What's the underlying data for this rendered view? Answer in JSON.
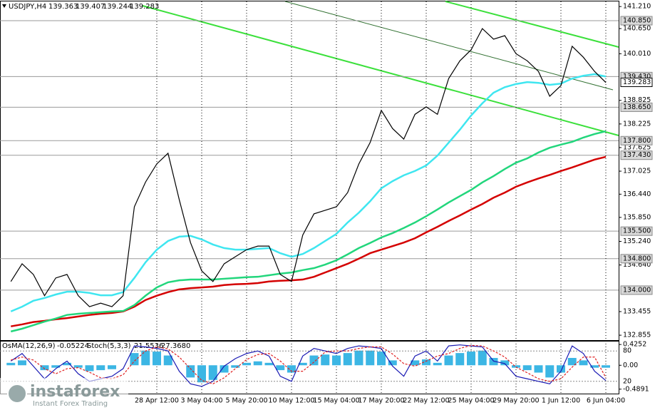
{
  "chart_data": {
    "type": "line",
    "title": "USDJPY,H4",
    "ohlc": [
      139.363,
      139.407,
      139.244,
      139.283
    ],
    "categories": [
      null,
      null,
      null,
      null,
      null,
      null,
      null,
      null,
      null,
      null,
      null,
      null,
      null,
      "28 Apr 12:00",
      null,
      null,
      null,
      "3 May 04:00",
      null,
      null,
      null,
      "5 May 20:00",
      null,
      null,
      null,
      "10 May 12:00",
      null,
      null,
      null,
      "15 May 04:00",
      null,
      null,
      null,
      "17 May 20:00",
      null,
      null,
      null,
      "22 May 12:00",
      null,
      null,
      null,
      "25 May 04:00",
      null,
      null,
      null,
      "29 May 20:00",
      null,
      null,
      null,
      "1 Jun 12:00",
      null,
      null,
      null,
      "6 Jun 04:00"
    ],
    "series": [
      {
        "color": "#000000",
        "values": [
          134.22,
          134.67,
          134.4,
          133.86,
          134.31,
          134.4,
          133.86,
          133.58,
          133.67,
          133.58,
          133.86,
          136.12,
          136.75,
          137.21,
          137.48,
          136.3,
          135.21,
          134.49,
          134.22,
          134.67,
          134.85,
          135.03,
          135.12,
          135.12,
          134.4,
          134.22,
          135.4,
          135.94,
          136.03,
          136.12,
          136.48,
          137.21,
          137.75,
          138.57,
          138.11,
          137.84,
          138.47,
          138.66,
          138.47,
          139.38,
          139.83,
          140.11,
          140.65,
          140.38,
          140.47,
          140.01,
          139.83,
          139.56,
          138.93,
          139.2,
          140.2,
          139.92,
          139.56,
          139.28
        ]
      },
      {
        "color": "#3fe6f0",
        "values": [
          133.46,
          133.58,
          133.73,
          133.8,
          133.89,
          133.96,
          133.96,
          133.93,
          133.87,
          133.87,
          133.95,
          134.31,
          134.71,
          135.03,
          135.25,
          135.36,
          135.38,
          135.29,
          135.16,
          135.07,
          135.03,
          135.03,
          135.05,
          135.07,
          134.94,
          134.85,
          134.92,
          135.07,
          135.25,
          135.43,
          135.72,
          135.97,
          136.26,
          136.59,
          136.77,
          136.92,
          137.03,
          137.17,
          137.42,
          137.75,
          138.08,
          138.44,
          138.75,
          139.02,
          139.16,
          139.24,
          139.29,
          139.27,
          139.22,
          139.25,
          139.38,
          139.45,
          139.49,
          139.43
        ]
      },
      {
        "color": "#22d67c",
        "values": [
          132.95,
          133.02,
          133.11,
          133.2,
          133.28,
          133.37,
          133.4,
          133.42,
          133.44,
          133.46,
          133.47,
          133.62,
          133.86,
          134.07,
          134.2,
          134.25,
          134.27,
          134.27,
          134.27,
          134.29,
          134.31,
          134.33,
          134.34,
          134.38,
          134.42,
          134.45,
          134.51,
          134.56,
          134.65,
          134.76,
          134.91,
          135.07,
          135.2,
          135.34,
          135.45,
          135.58,
          135.72,
          135.88,
          136.05,
          136.23,
          136.39,
          136.55,
          136.74,
          136.9,
          137.08,
          137.24,
          137.35,
          137.5,
          137.62,
          137.7,
          137.77,
          137.88,
          137.97,
          138.04
        ]
      },
      {
        "color": "#d40000",
        "values": [
          133.08,
          133.13,
          133.19,
          133.22,
          133.26,
          133.29,
          133.33,
          133.37,
          133.4,
          133.42,
          133.46,
          133.58,
          133.75,
          133.86,
          133.95,
          134.02,
          134.05,
          134.07,
          134.09,
          134.13,
          134.15,
          134.16,
          134.18,
          134.22,
          134.24,
          134.25,
          134.27,
          134.34,
          134.45,
          134.56,
          134.67,
          134.8,
          134.94,
          135.03,
          135.12,
          135.21,
          135.32,
          135.47,
          135.61,
          135.76,
          135.9,
          136.05,
          136.19,
          136.35,
          136.48,
          136.63,
          136.74,
          136.84,
          136.93,
          137.03,
          137.12,
          137.22,
          137.32,
          137.39
        ]
      }
    ],
    "ylim": [
      132.73,
      141.34
    ],
    "yticks": [
      {
        "value": 141.21,
        "label": "141.210"
      },
      {
        "value": 140.65,
        "label": "140.650"
      },
      {
        "value": 140.01,
        "label": "140.010"
      },
      138.825,
      138.225,
      137.625,
      137.025,
      {
        "value": 136.44,
        "label": "136.440"
      },
      {
        "value": 135.85,
        "label": "135.850"
      },
      {
        "value": 135.24,
        "label": "135.240"
      },
      {
        "value": 134.64,
        "label": "134.640"
      },
      133.455,
      132.855
    ],
    "levels": [
      {
        "value": 140.85,
        "label": "140.850"
      },
      {
        "value": 139.43,
        "label": "139.430"
      },
      {
        "value": 138.65,
        "label": "138.650"
      },
      {
        "value": 137.8,
        "label": "137.800"
      },
      {
        "value": 137.43,
        "label": "137.430"
      },
      {
        "value": 135.5,
        "label": "135.500"
      },
      {
        "value": 134.8,
        "label": "134.800"
      },
      {
        "value": 134,
        "label": "134.000"
      }
    ],
    "osma": {
      "label": "OsMA(12,26,9)",
      "value": -0.05224,
      "color": "#3cb6e4",
      "ylim": [
        -0.58,
        0.5
      ],
      "yticks": [
        0.4252,
        {
          "value": 0,
          "label": "0.00"
        },
        -0.4891
      ],
      "values": [
        0.05,
        0.1,
        0.0,
        -0.1,
        -0.05,
        0.05,
        -0.05,
        -0.12,
        -0.1,
        -0.08,
        0.0,
        0.25,
        0.3,
        0.28,
        0.2,
        0.0,
        -0.25,
        -0.35,
        -0.3,
        -0.15,
        -0.05,
        0.05,
        0.08,
        0.05,
        -0.1,
        -0.15,
        0.05,
        0.2,
        0.22,
        0.2,
        0.25,
        0.3,
        0.3,
        0.28,
        0.1,
        0.0,
        0.1,
        0.12,
        0.05,
        0.2,
        0.25,
        0.28,
        0.3,
        0.15,
        0.1,
        -0.05,
        -0.1,
        -0.15,
        -0.25,
        -0.15,
        0.15,
        0.1,
        -0.05,
        -0.05
      ]
    },
    "stoch": {
      "label": "Stoch(5,3,3)",
      "main": 21.5536,
      "signal": {
        "value": 27.368,
        "label": "27.3680"
      },
      "ylim": [
        0,
        100
      ],
      "yticks": [
        80,
        20
      ],
      "series": [
        {
          "color": "#1a1ab4",
          "values": [
            60,
            75,
            50,
            25,
            45,
            60,
            35,
            20,
            25,
            30,
            45,
            90,
            88,
            85,
            80,
            40,
            15,
            10,
            20,
            50,
            65,
            75,
            80,
            70,
            30,
            20,
            70,
            85,
            80,
            75,
            85,
            90,
            88,
            85,
            50,
            30,
            70,
            80,
            60,
            90,
            92,
            90,
            88,
            60,
            55,
            30,
            25,
            20,
            15,
            40,
            90,
            75,
            40,
            21.5536
          ]
        },
        {
          "color": "#e02020",
          "values": [
            62,
            68,
            62,
            45,
            35,
            45,
            47,
            38,
            27,
            25,
            33,
            60,
            80,
            88,
            84,
            68,
            45,
            22,
            15,
            27,
            45,
            63,
            73,
            75,
            60,
            40,
            40,
            58,
            78,
            80,
            80,
            85,
            88,
            88,
            74,
            55,
            50,
            60,
            70,
            75,
            85,
            91,
            90,
            80,
            68,
            48,
            37,
            25,
            20,
            25,
            48,
            68,
            68,
            27.368
          ]
        }
      ]
    },
    "watermark": {
      "brand": "instaforex",
      "tagline": "Instant Forex Trading"
    }
  }
}
